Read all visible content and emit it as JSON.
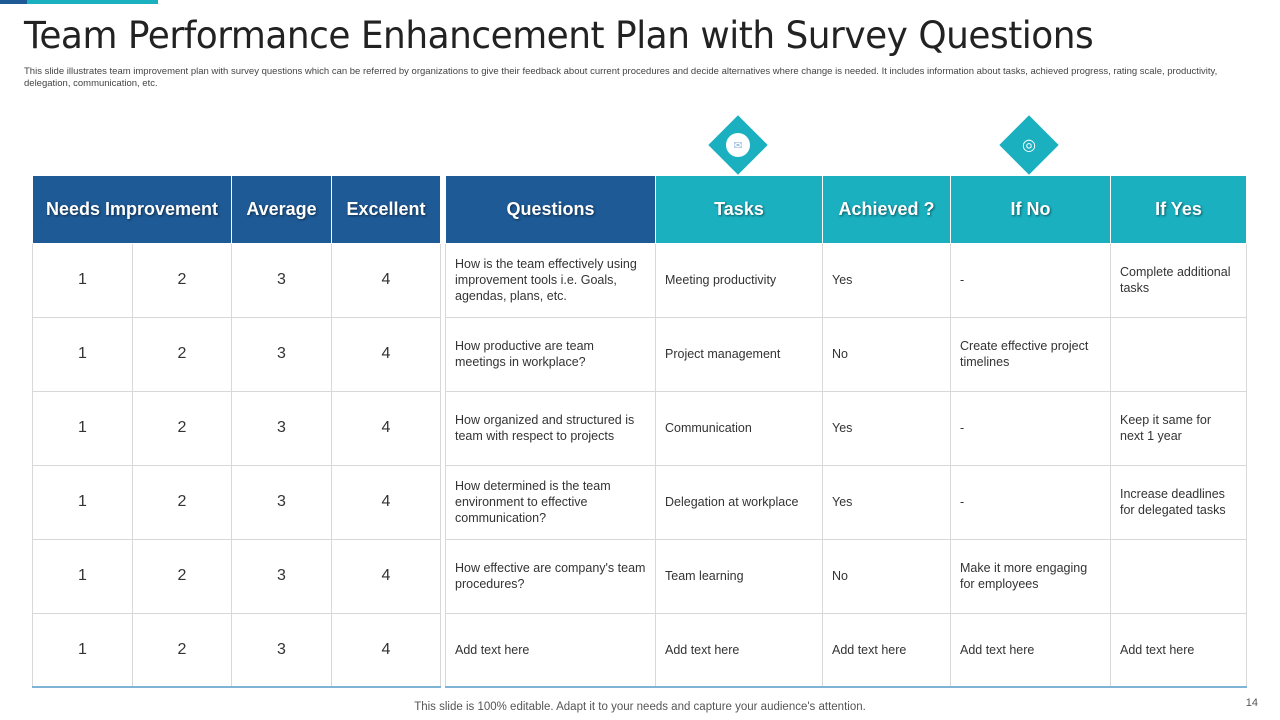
{
  "title": "Team Performance Enhancement Plan with Survey Questions",
  "subtitle": "This slide illustrates team improvement plan with survey questions which can be referred by organizations to give their feedback about current procedures and decide alternatives where change is needed. It includes information about tasks, achieved progress, rating scale, productivity, delegation, communication, etc.",
  "rating_table": {
    "headers": [
      "Needs Improvement",
      "Average",
      "Excellent"
    ],
    "rows": [
      [
        "1",
        "2",
        "3",
        "4"
      ],
      [
        "1",
        "2",
        "3",
        "4"
      ],
      [
        "1",
        "2",
        "3",
        "4"
      ],
      [
        "1",
        "2",
        "3",
        "4"
      ],
      [
        "1",
        "2",
        "3",
        "4"
      ],
      [
        "1",
        "2",
        "3",
        "4"
      ]
    ]
  },
  "survey_table": {
    "headers": [
      "Questions",
      "Tasks",
      "Achieved ?",
      "If No",
      "If Yes"
    ],
    "rows": [
      [
        "How is the team effectively using improvement  tools i.e. Goals, agendas, plans, etc.",
        "Meeting productivity",
        "Yes",
        "-",
        "Complete additional tasks"
      ],
      [
        "How productive  are team meetings in workplace?",
        "Project management",
        "No",
        "Create effective project timelines",
        ""
      ],
      [
        "How organized and structured is team with respect to projects",
        "Communication",
        "Yes",
        "-",
        "Keep it same for next 1 year"
      ],
      [
        "How determined is the team environment  to effective  communication?",
        "Delegation at workplace",
        "Yes",
        "-",
        "Increase deadlines for delegated tasks"
      ],
      [
        "How effective  are company's team procedures?",
        "Team learning",
        "No",
        "Make it more engaging for employees",
        ""
      ],
      [
        "Add text here",
        "Add text here",
        "Add text here",
        "Add text here",
        "Add text here"
      ]
    ]
  },
  "icons": [
    "checklist-icon",
    "target-hand-icon"
  ],
  "colors": {
    "dark_blue": "#1e5a96",
    "teal": "#1ab0c0"
  },
  "footer": "This slide is 100% editable. Adapt it to your needs and capture your audience's attention.",
  "page_number": "14"
}
